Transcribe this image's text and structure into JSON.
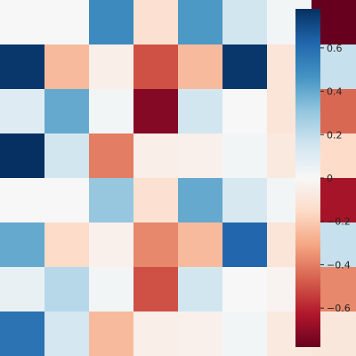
{
  "chart_data": {
    "type": "heatmap",
    "rows": 8,
    "cols": 8,
    "values": [
      [
        0.0,
        0.0,
        0.5,
        -0.12,
        0.45,
        0.15,
        0.02,
        -0.78
      ],
      [
        0.76,
        -0.25,
        -0.05,
        -0.5,
        -0.25,
        0.76,
        -0.1,
        0.18
      ],
      [
        0.1,
        0.4,
        0.02,
        -0.72,
        0.15,
        0.0,
        -0.1,
        -0.45
      ],
      [
        0.78,
        0.15,
        -0.4,
        -0.05,
        -0.04,
        0.02,
        -0.08,
        -0.15
      ],
      [
        0.0,
        0.0,
        0.3,
        -0.12,
        0.4,
        0.13,
        0.02,
        -0.65
      ],
      [
        0.4,
        -0.15,
        -0.04,
        -0.38,
        -0.25,
        0.62,
        -0.1,
        0.18
      ],
      [
        0.06,
        0.22,
        0.02,
        -0.5,
        0.15,
        0.0,
        -0.02,
        -0.38
      ],
      [
        0.58,
        0.14,
        -0.25,
        -0.05,
        -0.04,
        0.02,
        -0.08,
        -0.09
      ]
    ],
    "vmin": -0.78,
    "vmax": 0.78,
    "colormap": "RdBu",
    "colormap_stops": [
      "#67001f",
      "#b2182b",
      "#d6604d",
      "#f4a582",
      "#fddbc7",
      "#f7f7f7",
      "#d1e5f0",
      "#92c5de",
      "#4393c3",
      "#2166ac",
      "#053061"
    ],
    "colorbar": {
      "ticks": [
        0.6,
        0.4,
        0.2,
        0,
        -0.2,
        -0.4,
        -0.6
      ],
      "tick_labels": [
        "0.6",
        "0.4",
        "0.2",
        "0",
        "−0.2",
        "−0.4",
        "−0.6"
      ]
    },
    "grid": false,
    "xtick_labels": [],
    "ytick_labels": []
  }
}
